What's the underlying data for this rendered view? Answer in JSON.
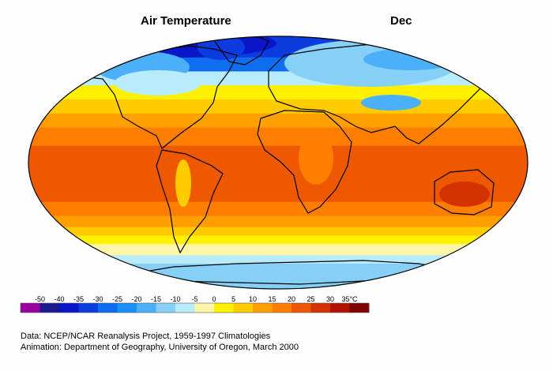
{
  "header": {
    "title": "Air Temperature",
    "month": "Dec"
  },
  "legend": {
    "unit": "°C",
    "ticks": [
      "-50",
      "-40",
      "-35",
      "-30",
      "-25",
      "-20",
      "-15",
      "-10",
      "-5",
      "0",
      "5",
      "10",
      "15",
      "20",
      "25",
      "30",
      "35°C"
    ],
    "colors": [
      "#9a00a0",
      "#1b1b8f",
      "#0b16c8",
      "#0a3ce0",
      "#0f6ef0",
      "#1a90f8",
      "#4cb0f8",
      "#86d0f8",
      "#b8ecfb",
      "#fdf6a8",
      "#fff000",
      "#ffcc00",
      "#ffa000",
      "#ff7d00",
      "#ee5800",
      "#d43200",
      "#b01400",
      "#7e0000"
    ]
  },
  "credits": {
    "data": "Data:  NCEP/NCAR Reanalysis Project, 1959-1997 Climatologies",
    "animation": "Animation:  Department of Geography, University of Oregon, March 2000"
  },
  "bands": [
    {
      "lat": 90,
      "color": "#0a3ce0"
    },
    {
      "lat": 75,
      "color": "#0f6ef0"
    },
    {
      "lat": 65,
      "color": "#b8ecfb"
    },
    {
      "lat": 55,
      "color": "#fff000"
    },
    {
      "lat": 45,
      "color": "#ffcc00"
    },
    {
      "lat": 35,
      "color": "#ffa000"
    },
    {
      "lat": 25,
      "color": "#ff7d00"
    },
    {
      "lat": 12,
      "color": "#ee5800"
    },
    {
      "lat": -15,
      "color": "#ee5800"
    },
    {
      "lat": -28,
      "color": "#ff7d00"
    },
    {
      "lat": -38,
      "color": "#ffa000"
    },
    {
      "lat": -46,
      "color": "#ffcc00"
    },
    {
      "lat": -52,
      "color": "#fff000"
    },
    {
      "lat": -58,
      "color": "#fdf6a8"
    },
    {
      "lat": -66,
      "color": "#b8ecfb"
    },
    {
      "lat": -90,
      "color": "#86d0f8"
    }
  ]
}
